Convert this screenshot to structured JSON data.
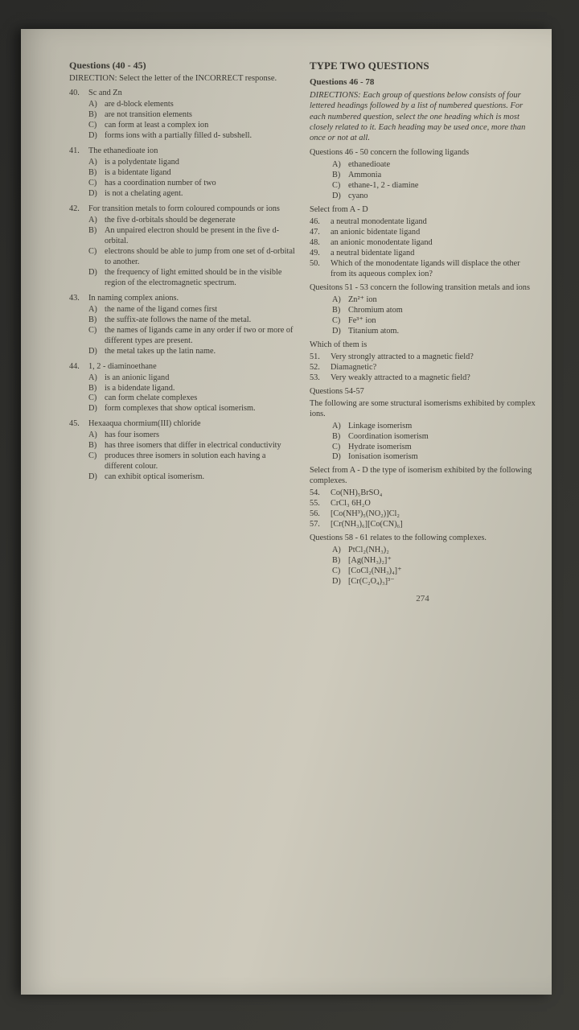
{
  "pageNumber": "274",
  "left": {
    "heading": "Questions (40 - 45)",
    "direction": "DIRECTION: Select the letter of the INCORRECT response.",
    "questions": [
      {
        "num": "40.",
        "stem": "Sc and Zn",
        "opts": [
          {
            "l": "A)",
            "t": "are d-block elements"
          },
          {
            "l": "B)",
            "t": "are not transition elements"
          },
          {
            "l": "C)",
            "t": "can form at least a complex ion"
          },
          {
            "l": "D)",
            "t": "forms ions with a partially filled d- subshell."
          }
        ]
      },
      {
        "num": "41.",
        "stem": "The ethanedioate ion",
        "opts": [
          {
            "l": "A)",
            "t": "is a polydentate ligand"
          },
          {
            "l": "B)",
            "t": "is a bidentate ligand"
          },
          {
            "l": "C)",
            "t": "has a coordination number of two"
          },
          {
            "l": "D)",
            "t": "is not a chelating agent."
          }
        ]
      },
      {
        "num": "42.",
        "stem": "For transition metals to form coloured compounds or ions",
        "opts": [
          {
            "l": "A)",
            "t": "the five d-orbitals should be degenerate"
          },
          {
            "l": "B)",
            "t": "An unpaired electron should be present in the five d-orbital."
          },
          {
            "l": "C)",
            "t": "electrons should be able to jump from one set of d-orbital to another."
          },
          {
            "l": "D)",
            "t": "the frequency of light emitted should be in the visible region of the electromagnetic spectrum."
          }
        ]
      },
      {
        "num": "43.",
        "stem": "In naming complex anions.",
        "opts": [
          {
            "l": "A)",
            "t": "the name of the ligand comes first"
          },
          {
            "l": "B)",
            "t": "the suffix-ate follows the name of the metal."
          },
          {
            "l": "C)",
            "t": "the names of ligands came in any order if two or more of different types are present."
          },
          {
            "l": "D)",
            "t": "the metal takes up the latin name."
          }
        ]
      },
      {
        "num": "44.",
        "stem": "1, 2 - diaminoethane",
        "opts": [
          {
            "l": "A)",
            "t": "is an anionic ligand"
          },
          {
            "l": "B)",
            "t": "is a bidendate ligand."
          },
          {
            "l": "C)",
            "t": "can form chelate complexes"
          },
          {
            "l": "D)",
            "t": "form complexes that show optical isomerism."
          }
        ]
      },
      {
        "num": "45.",
        "stem": "Hexaaqua chormium(III) chloride",
        "opts": [
          {
            "l": "A)",
            "t": "has four isomers"
          },
          {
            "l": "B)",
            "t": "has three isomers that differ in electrical conductivity"
          },
          {
            "l": "C)",
            "t": "produces three isomers in solution each having a different colour."
          },
          {
            "l": "D)",
            "t": "can exhibit optical isomerism."
          }
        ]
      }
    ]
  },
  "right": {
    "heading": "TYPE TWO QUESTIONS",
    "subheading": "Questions 46 - 78",
    "direction": "DIRECTIONS: Each group of questions below consists of four lettered headings followed by a list of numbered questions. For each numbered question, select the one heading which is most closely related to it. Each heading may be used once, more than once or not at all.",
    "groups": [
      {
        "title": "Questions 46 - 50 concern the following ligands",
        "opts": [
          {
            "l": "A)",
            "t": "ethanedioate"
          },
          {
            "l": "B)",
            "t": "Ammonia"
          },
          {
            "l": "C)",
            "t": "ethane-1, 2 - diamine"
          },
          {
            "l": "D)",
            "t": "cyano"
          }
        ],
        "lead": "Select from A - D",
        "items": [
          {
            "n": "46.",
            "t": "a neutral monodentate ligand"
          },
          {
            "n": "47.",
            "t": "an anionic bidentate ligand"
          },
          {
            "n": "48.",
            "t": "an anionic monodentate ligand"
          },
          {
            "n": "49.",
            "t": "a neutral bidentate ligand"
          },
          {
            "n": "50.",
            "t": "Which of the monodentate ligands will displace the other from its aqueous complex ion?"
          }
        ]
      },
      {
        "title": "Quesitons 51 - 53 concern the following transition metals and ions",
        "opts": [
          {
            "l": "A)",
            "t": "Zn²⁺ ion"
          },
          {
            "l": "B)",
            "t": "Chromium atom"
          },
          {
            "l": "C)",
            "t": "Fe³⁺ ion"
          },
          {
            "l": "D)",
            "t": "Titanium atom."
          }
        ],
        "lead": "Which of them is",
        "items": [
          {
            "n": "51.",
            "t": "Very strongly attracted to a magnetic field?"
          },
          {
            "n": "52.",
            "t": "Diamagnetic?"
          },
          {
            "n": "53.",
            "t": "Very weakly attracted to a magnetic field?"
          }
        ]
      },
      {
        "title": "Questions 54-57",
        "pre": "The following are some structural isomerisms exhibited by complex ions.",
        "opts": [
          {
            "l": "A)",
            "t": "Linkage isomerism"
          },
          {
            "l": "B)",
            "t": "Coordination isomerism"
          },
          {
            "l": "C)",
            "t": "Hydrate isomerism"
          },
          {
            "l": "D)",
            "t": "Ionisation isomerism"
          }
        ],
        "lead": "Select from A - D the type of isomerism exhibited by the following complexes.",
        "items": [
          {
            "n": "54.",
            "t": "Co(NH)₅BrSO₄"
          },
          {
            "n": "55.",
            "t": "CrCl₃ 6H₂O"
          },
          {
            "n": "56.",
            "t": "[Co(NH³)₅(NO₂)]Cl₂"
          },
          {
            "n": "57.",
            "t": "[Cr(NH₃)₆][Co(CN)₆]"
          }
        ]
      },
      {
        "title": "Questions 58 - 61 relates to the following complexes.",
        "opts": [
          {
            "l": "A)",
            "t": "PtCl₂(NH₃)₂"
          },
          {
            "l": "B)",
            "t": "[Ag(NH₃)₂]⁺"
          },
          {
            "l": "C)",
            "t": "[CoCl₂(NH₃)₄]⁺"
          },
          {
            "l": "D)",
            "t": "[Cr(C₂O₄)₃]³⁻"
          }
        ]
      }
    ]
  }
}
